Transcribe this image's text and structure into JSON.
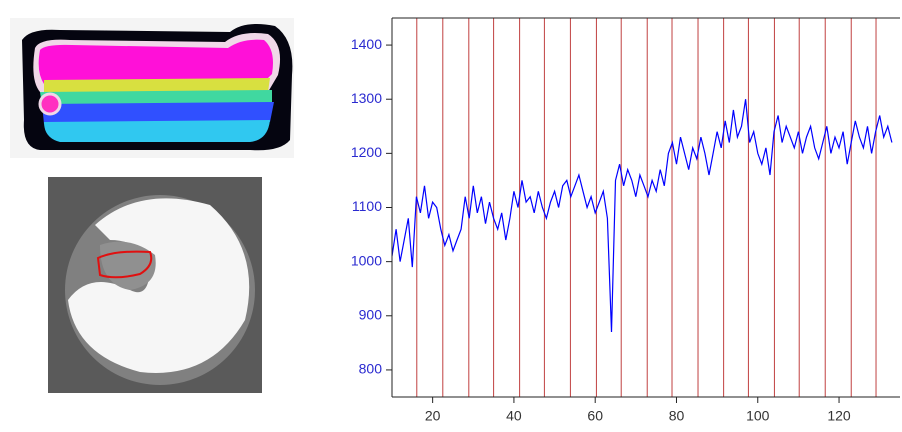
{
  "chart_data": {
    "type": "line",
    "x": [
      10,
      11,
      12,
      13,
      14,
      15,
      16,
      17,
      18,
      19,
      20,
      21,
      22,
      23,
      24,
      25,
      26,
      27,
      28,
      29,
      30,
      31,
      32,
      33,
      34,
      35,
      36,
      37,
      38,
      39,
      40,
      41,
      42,
      43,
      44,
      45,
      46,
      47,
      48,
      49,
      50,
      51,
      52,
      53,
      54,
      55,
      56,
      57,
      58,
      59,
      60,
      61,
      62,
      63,
      64,
      65,
      66,
      67,
      68,
      69,
      70,
      71,
      72,
      73,
      74,
      75,
      76,
      77,
      78,
      79,
      80,
      81,
      82,
      83,
      84,
      85,
      86,
      87,
      88,
      89,
      90,
      91,
      92,
      93,
      94,
      95,
      96,
      97,
      98,
      99,
      100,
      101,
      102,
      103,
      104,
      105,
      106,
      107,
      108,
      109,
      110,
      111,
      112,
      113,
      114,
      115,
      116,
      117,
      118,
      119,
      120,
      121,
      122,
      123,
      124,
      125,
      126,
      127,
      128,
      129,
      130,
      131,
      132,
      133
    ],
    "series": [
      {
        "color": "#0000ff",
        "values": [
          1010,
          1060,
          1000,
          1040,
          1080,
          990,
          1120,
          1090,
          1140,
          1080,
          1110,
          1100,
          1060,
          1030,
          1050,
          1020,
          1040,
          1060,
          1120,
          1080,
          1140,
          1090,
          1120,
          1070,
          1110,
          1080,
          1060,
          1090,
          1040,
          1080,
          1130,
          1100,
          1150,
          1110,
          1120,
          1090,
          1130,
          1100,
          1080,
          1110,
          1130,
          1100,
          1140,
          1150,
          1120,
          1140,
          1160,
          1130,
          1100,
          1120,
          1090,
          1110,
          1130,
          1080,
          870,
          1150,
          1180,
          1140,
          1170,
          1150,
          1120,
          1160,
          1140,
          1120,
          1150,
          1130,
          1170,
          1140,
          1200,
          1220,
          1180,
          1230,
          1200,
          1170,
          1210,
          1190,
          1230,
          1200,
          1160,
          1200,
          1240,
          1210,
          1260,
          1220,
          1280,
          1230,
          1250,
          1300,
          1220,
          1240,
          1200,
          1180,
          1210,
          1160,
          1240,
          1270,
          1220,
          1250,
          1230,
          1210,
          1240,
          1200,
          1230,
          1250,
          1210,
          1190,
          1220,
          1250,
          1200,
          1230,
          1210,
          1240,
          1180,
          1220,
          1260,
          1230,
          1210,
          1250,
          1200,
          1240,
          1270,
          1230,
          1250,
          1220
        ]
      }
    ],
    "markers": {
      "color": "#c04040",
      "x": [
        16.1,
        22.5,
        28.9,
        35,
        41.4,
        47.5,
        53.9,
        60.3,
        66.4,
        72.8,
        78.9,
        85.3,
        91.6,
        97.7,
        104.1,
        110.2,
        116.6,
        123,
        129.1
      ]
    },
    "xlim": [
      10,
      135
    ],
    "ylim": [
      750,
      1450
    ],
    "xticks": [
      20,
      40,
      60,
      80,
      100,
      120
    ],
    "yticks": [
      800,
      900,
      1000,
      1100,
      1200,
      1300,
      1400
    ]
  }
}
